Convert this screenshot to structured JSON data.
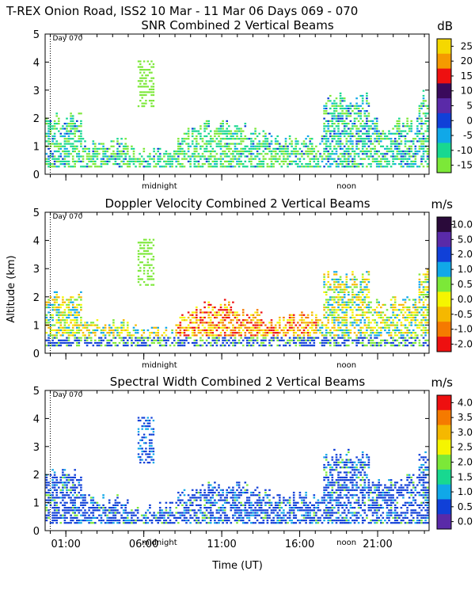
{
  "page_title": "T-REX Onion Road, ISS2  10 Mar - 11 Mar 06 Days 069 - 070",
  "shared_axes": {
    "ylabel": "Altitude (km)",
    "xlabel": "Time (UT)",
    "y_ticks": [
      "0",
      "1",
      "2",
      "3",
      "4",
      "5"
    ],
    "ylim": [
      0,
      5
    ],
    "x_tick_labels": [
      "01:00",
      "06:00",
      "11:00",
      "16:00",
      "21:00"
    ],
    "x_tick_hours": [
      1,
      6,
      11,
      16,
      21
    ],
    "xlim_hours": [
      -0.33,
      24.3
    ],
    "day_marker_label": "Day 070",
    "day_marker_hour": 0,
    "midnight_label": "midnight",
    "midnight_hour": 7,
    "noon_label": "noon",
    "noon_hour": 19
  },
  "chart_data": [
    {
      "type": "heatmap",
      "title": "SNR Combined 2 Vertical Beams",
      "unit": "dB",
      "colorbar_labels": [
        "25",
        "20",
        "15",
        "10",
        "5",
        "0",
        "-5",
        "-10",
        "-15"
      ],
      "colorbar_colors": [
        "#f5d800",
        "#f59a00",
        "#ee1010",
        "#3a0a5c",
        "#5a2aa8",
        "#1040d8",
        "#10a8e8",
        "#18d890",
        "#7ce838"
      ],
      "xlabel": "",
      "ylabel": "Altitude (km)",
      "ylim": [
        0,
        5
      ]
    },
    {
      "type": "heatmap",
      "title": "Doppler Velocity Combined 2 Vertical Beams",
      "unit": "m/s",
      "colorbar_labels": [
        "10.0",
        "5.0",
        "2.0",
        "1.0",
        "0.5",
        "0.0",
        "-0.5",
        "-1.0",
        "-2.0"
      ],
      "colorbar_colors": [
        "#2a0a3a",
        "#5a2aa8",
        "#1040d8",
        "#10a8e8",
        "#7ce838",
        "#f5f500",
        "#f5b800",
        "#f57a00",
        "#ee1010"
      ],
      "xlabel": "",
      "ylabel": "Altitude (km)",
      "ylim": [
        0,
        5
      ]
    },
    {
      "type": "heatmap",
      "title": "Spectral Width Combined 2 Vertical Beams",
      "unit": "m/s",
      "colorbar_labels": [
        "4.0",
        "3.5",
        "3.0",
        "2.5",
        "2.0",
        "1.5",
        "1.0",
        "0.5",
        "0.0"
      ],
      "colorbar_colors": [
        "#ee1010",
        "#f57a00",
        "#f5b800",
        "#f5f500",
        "#7ce838",
        "#18d890",
        "#10a8e8",
        "#1040d8",
        "#5a2aa8"
      ],
      "xlabel": "Time (UT)",
      "ylabel": "Altitude (km)",
      "ylim": [
        0,
        5
      ]
    }
  ]
}
